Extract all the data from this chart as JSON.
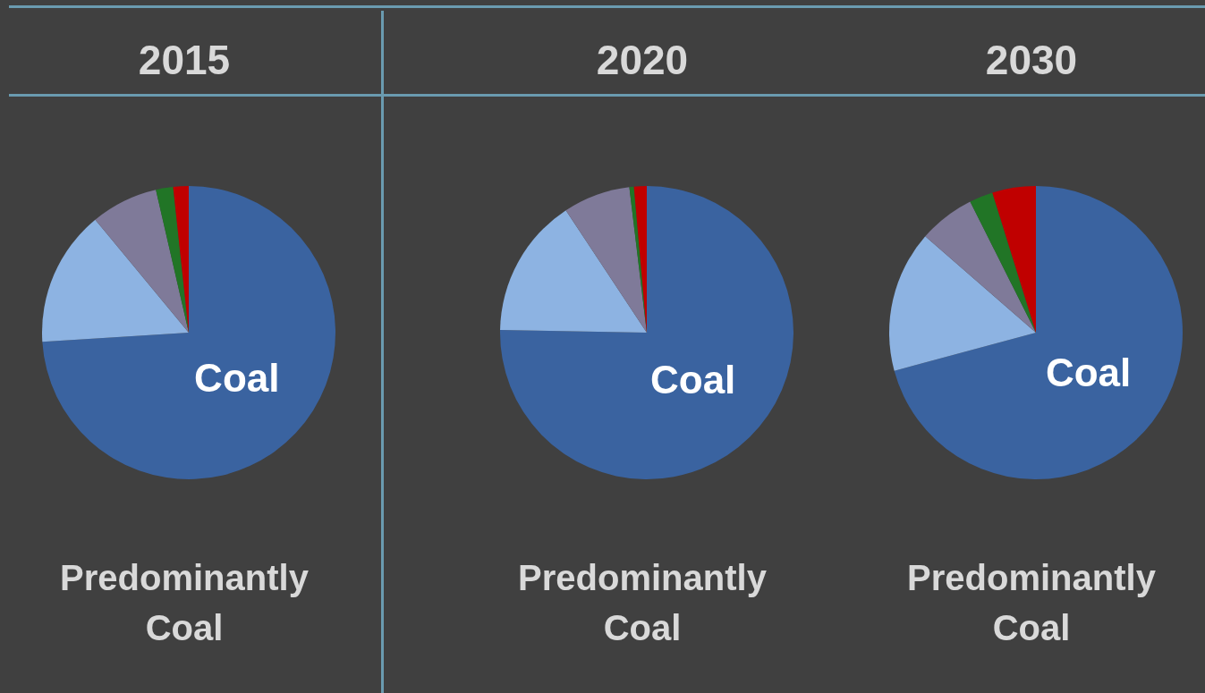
{
  "chart_data": [
    {
      "type": "pie",
      "title": "2015",
      "categories": [
        "Coal",
        null,
        null,
        null,
        null
      ],
      "values": [
        74,
        15,
        7.4,
        1.9,
        1.7
      ],
      "colors": [
        "#3a63a0",
        "#8db3e2",
        "#7f7a99",
        "#217526",
        "#c00000"
      ],
      "annotations": [
        "Predominantly Coal"
      ]
    },
    {
      "type": "pie",
      "title": "2020",
      "categories": [
        "Coal",
        null,
        null,
        null,
        null
      ],
      "values": [
        75.3,
        15.4,
        7.4,
        0.5,
        1.4
      ],
      "colors": [
        "#3a63a0",
        "#8db3e2",
        "#7f7a99",
        "#217526",
        "#c00000"
      ],
      "annotations": [
        "Predominantly Coal"
      ]
    },
    {
      "type": "pie",
      "title": "2030",
      "categories": [
        "Coal",
        null,
        null,
        null,
        null
      ],
      "values": [
        70.8,
        15.6,
        6.2,
        2.6,
        4.8
      ],
      "colors": [
        "#3a63a0",
        "#8db3e2",
        "#7f7a99",
        "#217526",
        "#c00000"
      ],
      "annotations": [
        "Predominantly Coal"
      ]
    }
  ]
}
